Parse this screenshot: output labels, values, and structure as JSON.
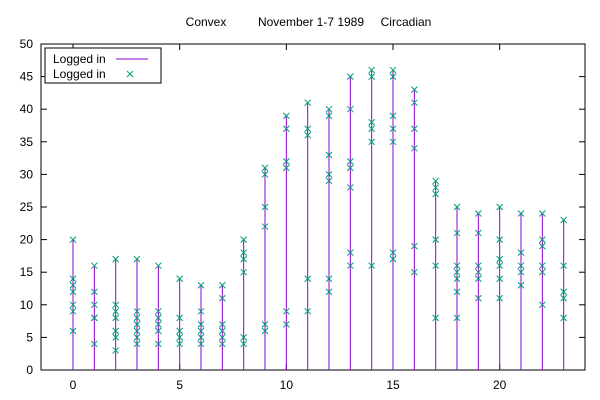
{
  "chart_data": {
    "type": "scatter",
    "title_parts": [
      "Convex",
      "November 1-7 1989",
      "Circadian"
    ],
    "xlabel": "",
    "ylabel": "",
    "xlim": [
      -1.5,
      24
    ],
    "ylim": [
      0,
      50
    ],
    "x_ticks": [
      0,
      5,
      10,
      15,
      20
    ],
    "y_ticks": [
      0,
      5,
      10,
      15,
      20,
      25,
      30,
      35,
      40,
      45,
      50
    ],
    "grid": false,
    "legend_position": "top-left",
    "colors": {
      "impulse": "#9400d3",
      "point": "#009e73"
    },
    "series": [
      {
        "name": "Logged in",
        "style": "impulses",
        "x": [
          0,
          1,
          2,
          3,
          4,
          5,
          6,
          7,
          8,
          9,
          10,
          11,
          12,
          13,
          14,
          15,
          16,
          17,
          18,
          19,
          20,
          21,
          22,
          23
        ],
        "y": [
          20,
          16,
          17,
          17,
          16,
          14,
          13,
          13,
          20,
          31,
          39,
          41,
          40,
          45,
          46,
          46,
          43,
          29,
          25,
          24,
          25,
          24,
          24,
          23
        ]
      },
      {
        "name": "Logged in",
        "style": "points",
        "points": [
          [
            0,
            20
          ],
          [
            0,
            14
          ],
          [
            0,
            13
          ],
          [
            0,
            12
          ],
          [
            0,
            10
          ],
          [
            0,
            9
          ],
          [
            0,
            6
          ],
          [
            1,
            16
          ],
          [
            1,
            12
          ],
          [
            1,
            10
          ],
          [
            1,
            8
          ],
          [
            1,
            8
          ],
          [
            1,
            4
          ],
          [
            2,
            17
          ],
          [
            2,
            10
          ],
          [
            2,
            9
          ],
          [
            2,
            8
          ],
          [
            2,
            6
          ],
          [
            2,
            5
          ],
          [
            2,
            3
          ],
          [
            3,
            17
          ],
          [
            3,
            9
          ],
          [
            3,
            8
          ],
          [
            3,
            7
          ],
          [
            3,
            6
          ],
          [
            3,
            5
          ],
          [
            3,
            4
          ],
          [
            4,
            16
          ],
          [
            4,
            9
          ],
          [
            4,
            8
          ],
          [
            4,
            7
          ],
          [
            4,
            6
          ],
          [
            4,
            4
          ],
          [
            5,
            14
          ],
          [
            5,
            8
          ],
          [
            5,
            6
          ],
          [
            5,
            5
          ],
          [
            5,
            4
          ],
          [
            6,
            13
          ],
          [
            6,
            9
          ],
          [
            6,
            7
          ],
          [
            6,
            6
          ],
          [
            6,
            5
          ],
          [
            6,
            4
          ],
          [
            7,
            13
          ],
          [
            7,
            11
          ],
          [
            7,
            7
          ],
          [
            7,
            6
          ],
          [
            7,
            5
          ],
          [
            7,
            4
          ],
          [
            8,
            20
          ],
          [
            8,
            18
          ],
          [
            8,
            17
          ],
          [
            8,
            15
          ],
          [
            8,
            5
          ],
          [
            8,
            4
          ],
          [
            9,
            31
          ],
          [
            9,
            30
          ],
          [
            9,
            25
          ],
          [
            9,
            22
          ],
          [
            9,
            7
          ],
          [
            9,
            6
          ],
          [
            10,
            39
          ],
          [
            10,
            37
          ],
          [
            10,
            32
          ],
          [
            10,
            31
          ],
          [
            10,
            9
          ],
          [
            10,
            7
          ],
          [
            11,
            41
          ],
          [
            11,
            37
          ],
          [
            11,
            36
          ],
          [
            11,
            14
          ],
          [
            11,
            9
          ],
          [
            12,
            40
          ],
          [
            12,
            39
          ],
          [
            12,
            33
          ],
          [
            12,
            30
          ],
          [
            12,
            29
          ],
          [
            12,
            14
          ],
          [
            12,
            12
          ],
          [
            13,
            45
          ],
          [
            13,
            40
          ],
          [
            13,
            32
          ],
          [
            13,
            31
          ],
          [
            13,
            28
          ],
          [
            13,
            18
          ],
          [
            13,
            16
          ],
          [
            14,
            46
          ],
          [
            14,
            45
          ],
          [
            14,
            38
          ],
          [
            14,
            37
          ],
          [
            14,
            35
          ],
          [
            14,
            16
          ],
          [
            15,
            46
          ],
          [
            15,
            45
          ],
          [
            15,
            39
          ],
          [
            15,
            37
          ],
          [
            15,
            35
          ],
          [
            15,
            18
          ],
          [
            15,
            17
          ],
          [
            16,
            43
          ],
          [
            16,
            41
          ],
          [
            16,
            37
          ],
          [
            16,
            34
          ],
          [
            16,
            19
          ],
          [
            16,
            15
          ],
          [
            17,
            29
          ],
          [
            17,
            28
          ],
          [
            17,
            27
          ],
          [
            17,
            20
          ],
          [
            17,
            16
          ],
          [
            17,
            8
          ],
          [
            18,
            25
          ],
          [
            18,
            21
          ],
          [
            18,
            16
          ],
          [
            18,
            15
          ],
          [
            18,
            14
          ],
          [
            18,
            12
          ],
          [
            18,
            8
          ],
          [
            19,
            24
          ],
          [
            19,
            21
          ],
          [
            19,
            16
          ],
          [
            19,
            15
          ],
          [
            19,
            14
          ],
          [
            19,
            11
          ],
          [
            20,
            25
          ],
          [
            20,
            20
          ],
          [
            20,
            17
          ],
          [
            20,
            16
          ],
          [
            20,
            14
          ],
          [
            20,
            11
          ],
          [
            21,
            24
          ],
          [
            21,
            18
          ],
          [
            21,
            16
          ],
          [
            21,
            15
          ],
          [
            21,
            13
          ],
          [
            22,
            24
          ],
          [
            22,
            20
          ],
          [
            22,
            19
          ],
          [
            22,
            16
          ],
          [
            22,
            15
          ],
          [
            22,
            10
          ],
          [
            23,
            23
          ],
          [
            23,
            16
          ],
          [
            23,
            12
          ],
          [
            23,
            11
          ],
          [
            23,
            8
          ]
        ]
      }
    ]
  }
}
